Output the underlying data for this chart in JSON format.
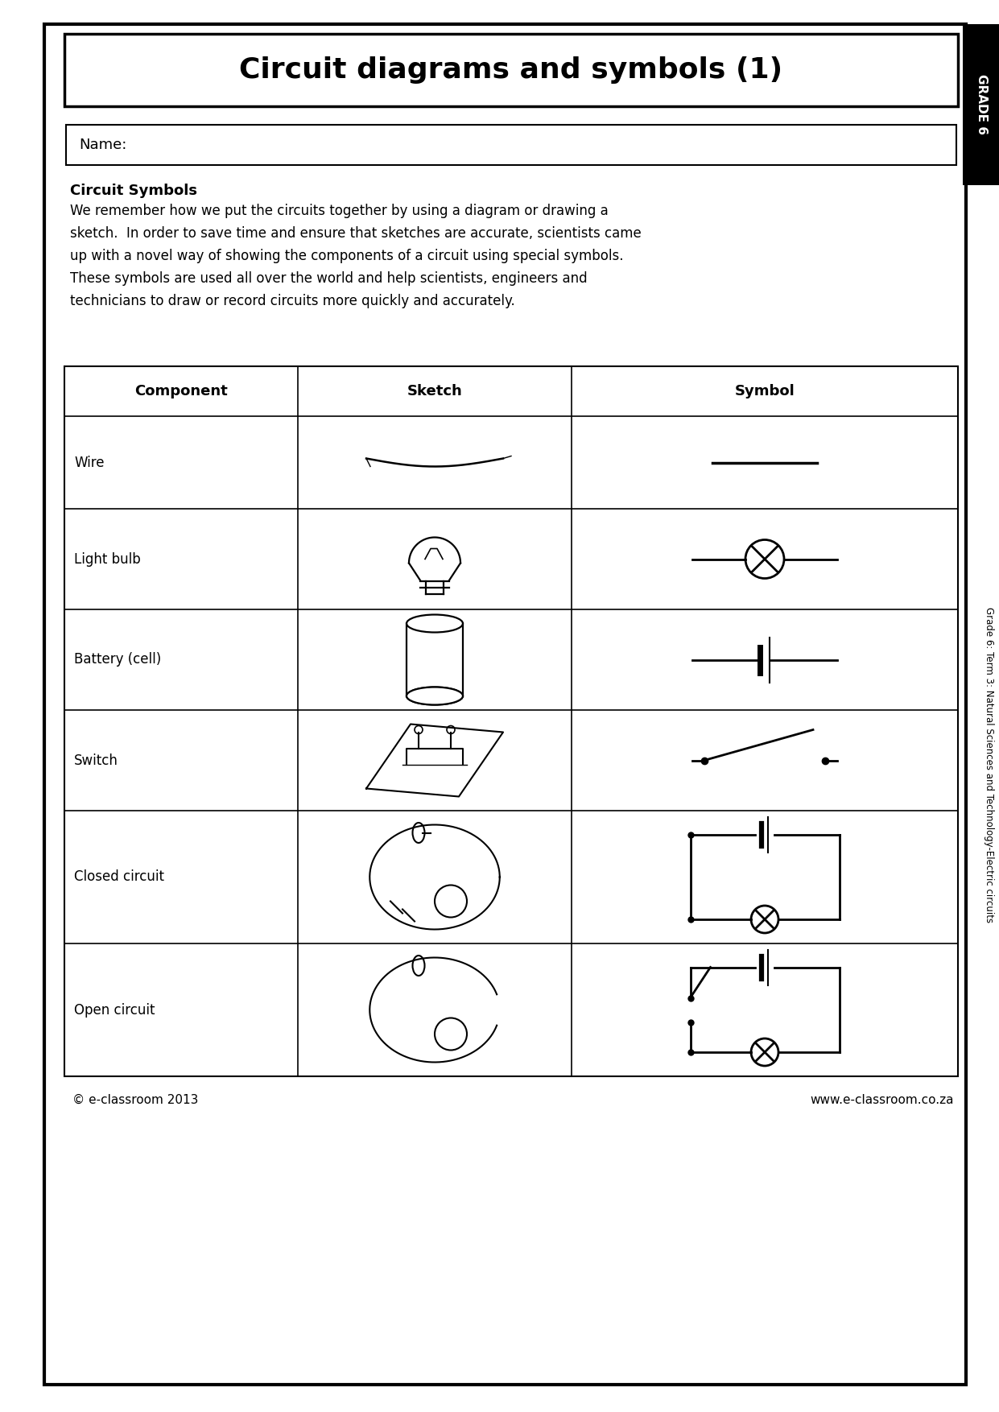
{
  "title": "Circuit diagrams and symbols (1)",
  "grade_label": "GRADE 6",
  "side_label": "Grade 6: Term 3: Natural Sciences and Technology-Electric circuits",
  "name_label": "Name:",
  "section_title": "Circuit Symbols",
  "body_text": "We remember how we put the circuits together by using a diagram or drawing a\nsketch.  In order to save time and ensure that sketches are accurate, scientists came\nup with a novel way of showing the components of a circuit using special symbols.\nThese symbols are used all over the world and help scientists, engineers and\ntechnicians to draw or record circuits more quickly and accurately.",
  "table_headers": [
    "Component",
    "Sketch",
    "Symbol"
  ],
  "rows": [
    "Wire",
    "Light bulb",
    "Battery (cell)",
    "Switch",
    "Closed circuit",
    "Open circuit"
  ],
  "footer_left": "© e-classroom 2013",
  "footer_right": "www.e-classroom.co.za",
  "bg_color": "#ffffff",
  "text_color": "#000000"
}
